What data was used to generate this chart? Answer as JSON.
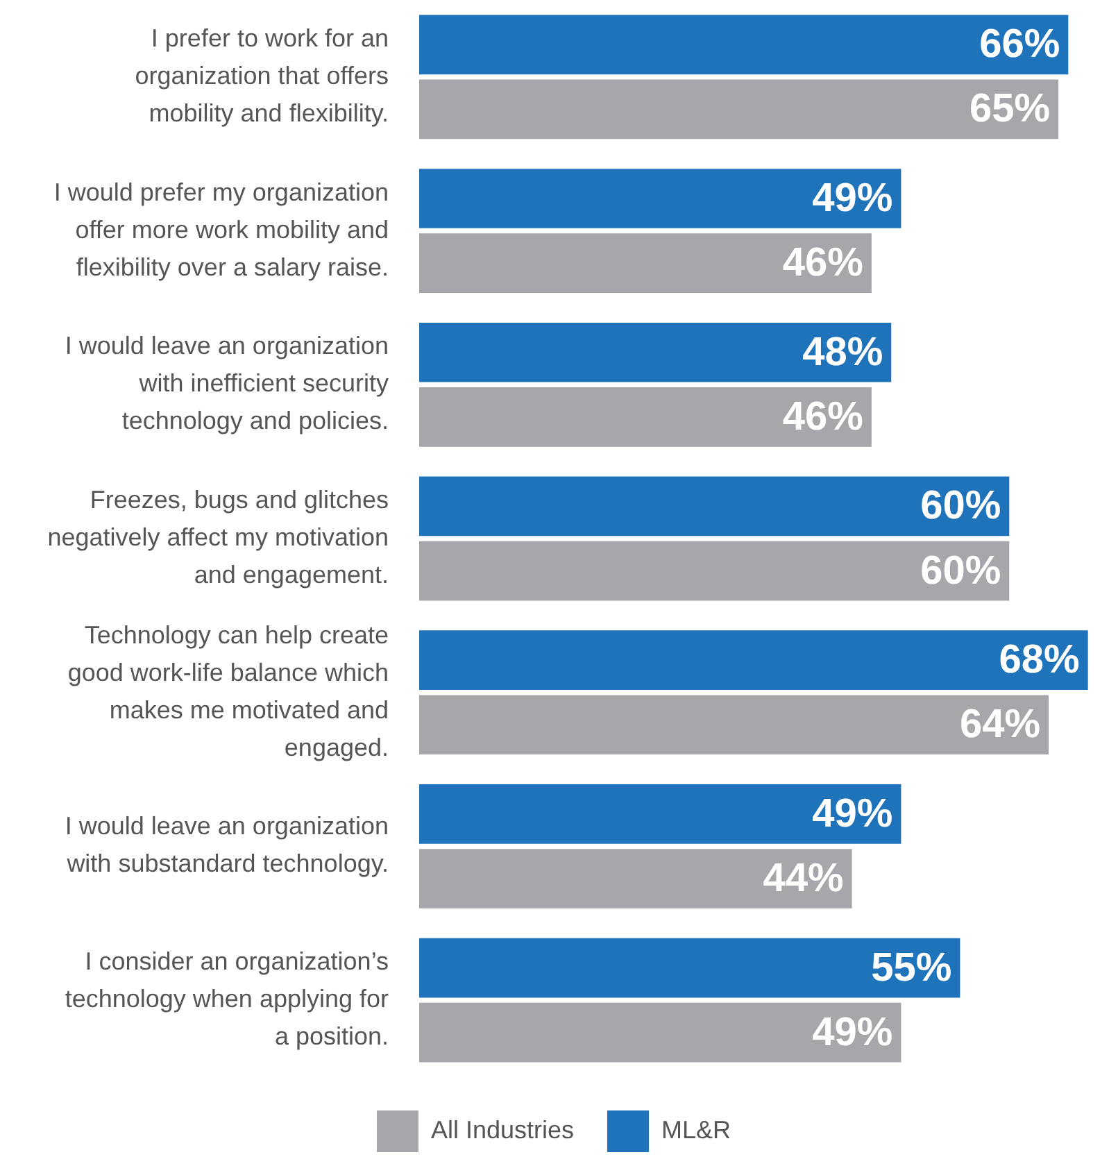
{
  "chart_data": {
    "type": "bar",
    "orientation": "horizontal",
    "categories": [
      "I prefer to work for an organization that offers mobility and flexibility.",
      "I would prefer my organization offer more work mobility and flexibility over a salary raise.",
      "I would leave an organization with inefficient security technology and policies.",
      "Freezes, bugs and glitches negatively affect my motivation and engagement.",
      "Technology can help create good work-life balance which makes me motivated and engaged.",
      "I would leave an organization with substandard technology.",
      "I consider an organization’s technology when applying for a position."
    ],
    "series": [
      {
        "name": "ML&R",
        "color": "#1f73bb",
        "values": [
          66,
          49,
          48,
          60,
          68,
          49,
          55
        ],
        "value_labels": [
          "66%",
          "49%",
          "48%",
          "60%",
          "68%",
          "49%",
          "55%"
        ]
      },
      {
        "name": "All Industries",
        "color": "#a6a7ab",
        "values": [
          65,
          46,
          46,
          60,
          64,
          44,
          49
        ],
        "value_labels": [
          "65%",
          "46%",
          "46%",
          "60%",
          "64%",
          "44%",
          "49%"
        ]
      }
    ],
    "legend": "bottom",
    "tick_labels": "y"
  }
}
